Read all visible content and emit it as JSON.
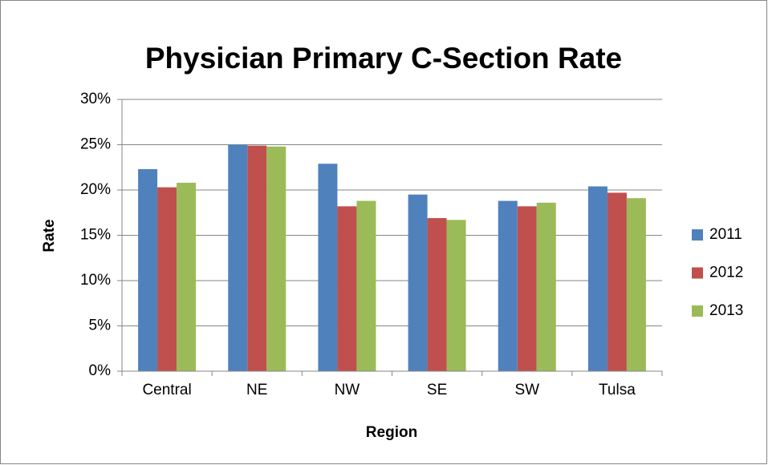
{
  "chart_data": {
    "type": "bar",
    "title": "Physician Primary C-Section Rate",
    "x_label": "Region",
    "y_label": "Rate",
    "categories": [
      "Central",
      "NE",
      "NW",
      "SE",
      "SW",
      "Tulsa"
    ],
    "series": [
      {
        "name": "2011",
        "color": "#4f81bd",
        "values": [
          22.3,
          25.0,
          22.9,
          19.5,
          18.8,
          20.4
        ]
      },
      {
        "name": "2012",
        "color": "#c0504d",
        "values": [
          20.3,
          24.9,
          18.2,
          16.9,
          18.2,
          19.7
        ]
      },
      {
        "name": "2013",
        "color": "#9bbb59",
        "values": [
          20.8,
          24.8,
          18.8,
          16.7,
          18.6,
          19.1
        ]
      }
    ],
    "ylim": [
      0,
      30
    ],
    "yticks": [
      {
        "value": 0,
        "label": "0%"
      },
      {
        "value": 5,
        "label": "5%"
      },
      {
        "value": 10,
        "label": "10%"
      },
      {
        "value": 15,
        "label": "15%"
      },
      {
        "value": 20,
        "label": "20%"
      },
      {
        "value": 25,
        "label": "25%"
      },
      {
        "value": 30,
        "label": "30%"
      }
    ],
    "grid": true,
    "legend": "right"
  }
}
